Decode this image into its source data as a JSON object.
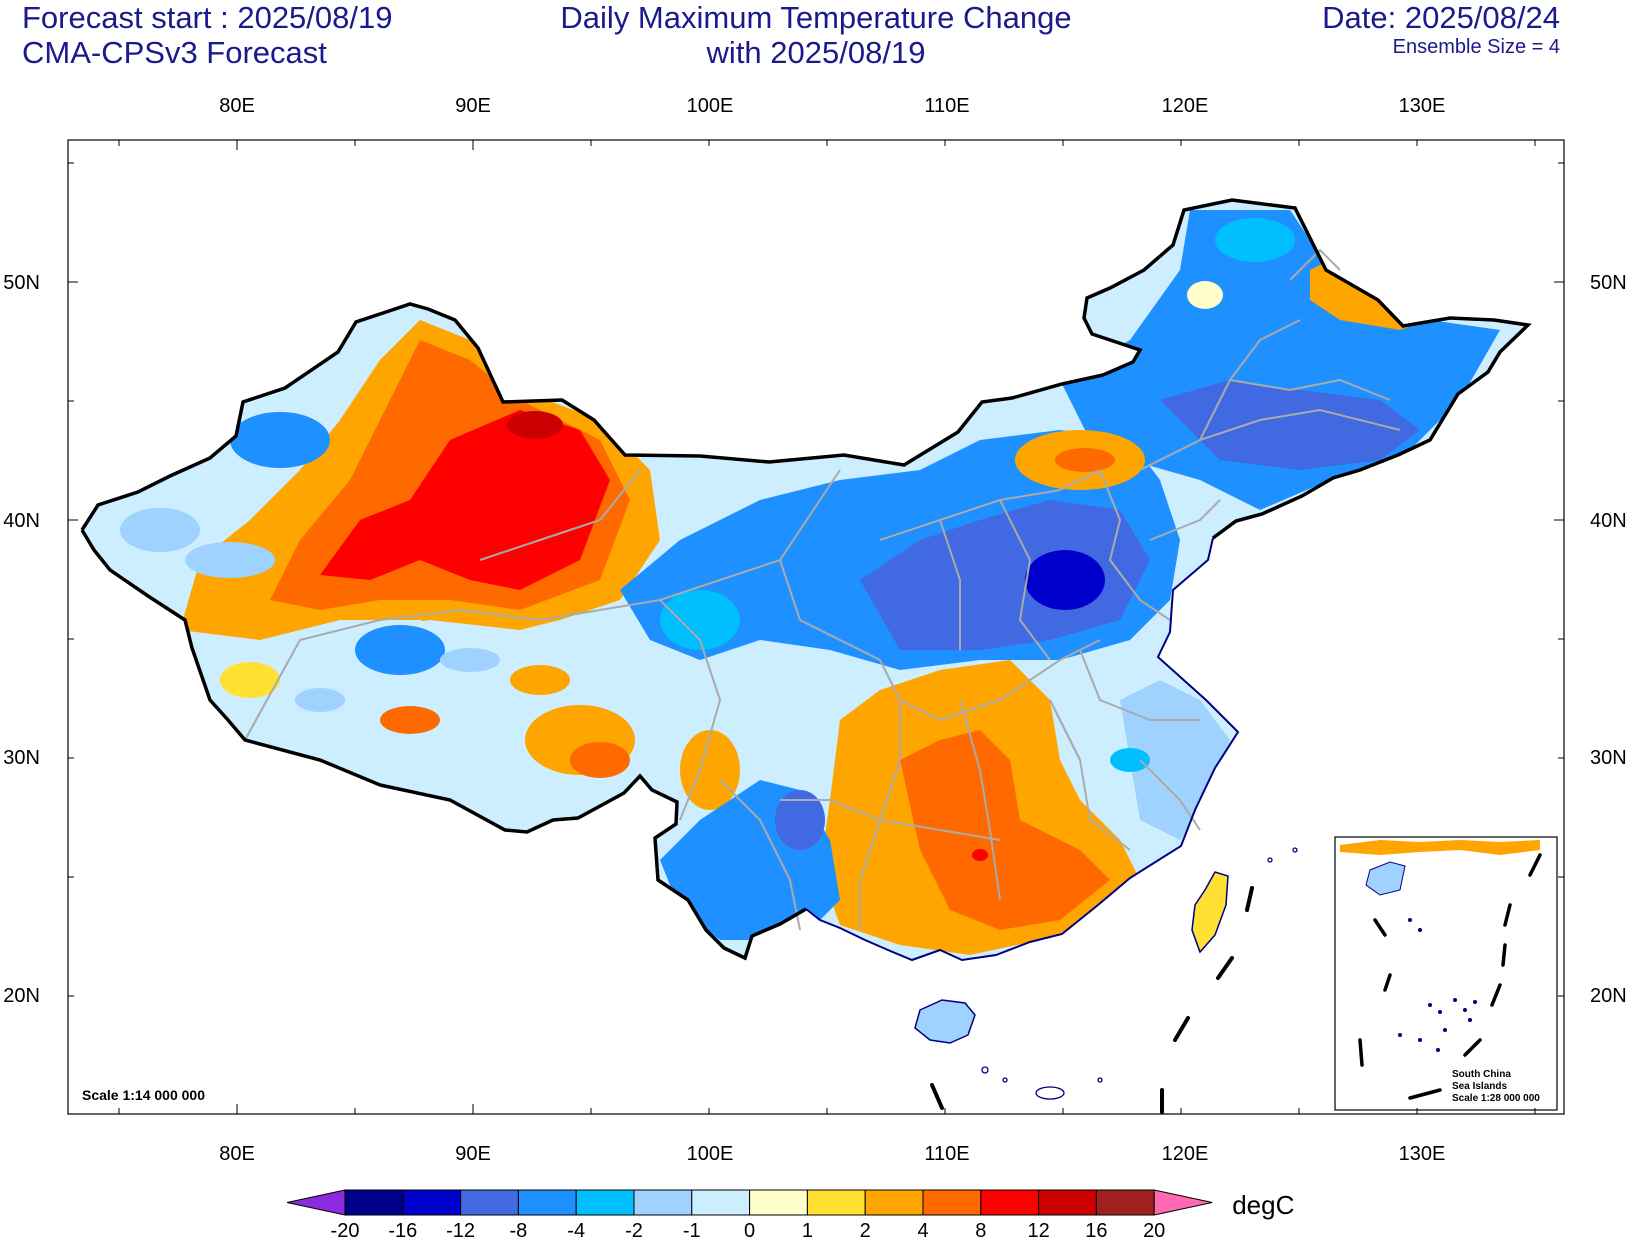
{
  "header": {
    "forecast_start": "Forecast start : 2025/08/19",
    "model": "CMA-CPSv3 Forecast",
    "title_line1": "Daily Maximum Temperature Change",
    "title_line2": "with 2025/08/19",
    "date": "Date: 2025/08/24",
    "ensemble": "Ensemble Size = 4"
  },
  "axes": {
    "lon_labels": [
      "80E",
      "90E",
      "100E",
      "110E",
      "120E",
      "130E"
    ],
    "lat_labels": [
      "50N",
      "40N",
      "30N",
      "20N"
    ]
  },
  "scale_text": "Scale 1:14 000 000",
  "inset": {
    "line1": "South China",
    "line2": "Sea Islands",
    "line3": "Scale 1:28 000 000"
  },
  "colorbar": {
    "unit": "degC",
    "ticks": [
      "-20",
      "-16",
      "-12",
      "-8",
      "-4",
      "-2",
      "-1",
      "0",
      "1",
      "2",
      "4",
      "8",
      "12",
      "16",
      "20"
    ],
    "under_color": "#8a2be2",
    "over_color": "#ff69b4",
    "colors": [
      "#00008b",
      "#0000cd",
      "#4169e1",
      "#1e90ff",
      "#00bfff",
      "#9fd2ff",
      "#cdeeff",
      "#ffffcc",
      "#ffe033",
      "#ffa500",
      "#ff6a00",
      "#ff0000",
      "#cc0000",
      "#a01f1f"
    ]
  },
  "regions": {
    "warm_northwest": "#ff6a00",
    "hot_core": "#ff0000",
    "cool_north_china": "#4169e1",
    "cold_core": "#0000cd",
    "northeast_cool": "#1e90ff",
    "south_warm": "#ffa500",
    "southwest_cool": "#1e90ff",
    "tibet_mixed": "#9fd2ff"
  }
}
